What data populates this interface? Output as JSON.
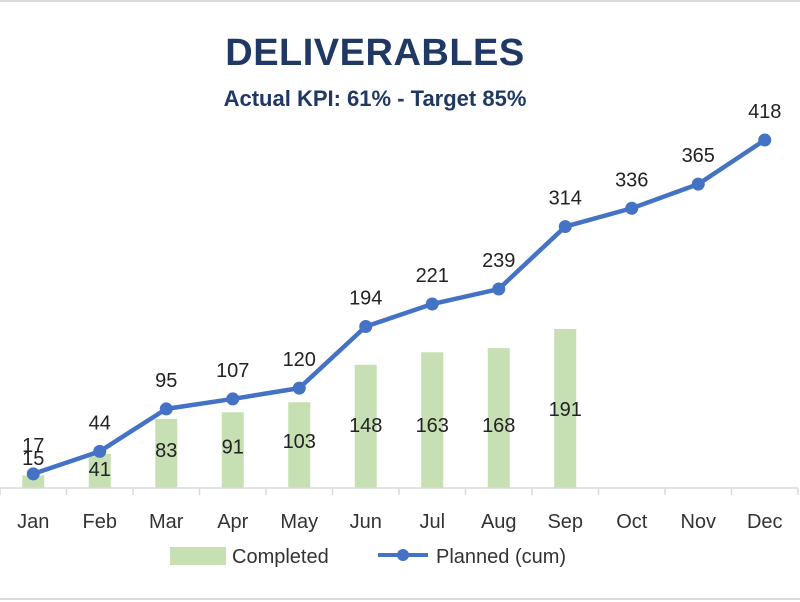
{
  "title": "DELIVERABLES",
  "subtitle": "Actual KPI: 61% - Target 85%",
  "colors": {
    "completed": "#c6e0b4",
    "planned": "#4472c4",
    "title": "#1f3864"
  },
  "legend": {
    "completed": "Completed",
    "planned": "Planned (cum)",
    "placement": "bottom"
  },
  "chart_data": {
    "type": "bar",
    "categories": [
      "Jan",
      "Feb",
      "Mar",
      "Apr",
      "May",
      "Jun",
      "Jul",
      "Aug",
      "Sep",
      "Oct",
      "Nov",
      "Dec"
    ],
    "series": [
      {
        "name": "Completed",
        "type": "bar",
        "values": [
          15,
          41,
          83,
          91,
          103,
          148,
          163,
          168,
          191,
          null,
          null,
          null
        ]
      },
      {
        "name": "Planned (cum)",
        "type": "line",
        "values": [
          17,
          44,
          95,
          107,
          120,
          194,
          221,
          239,
          314,
          336,
          365,
          418
        ]
      }
    ],
    "title": "DELIVERABLES",
    "subtitle": "Actual KPI: 61% - Target 85%",
    "xlabel": "",
    "ylabel": "",
    "ylim": [
      0,
      418
    ],
    "grid": false,
    "legend_position": "bottom"
  }
}
